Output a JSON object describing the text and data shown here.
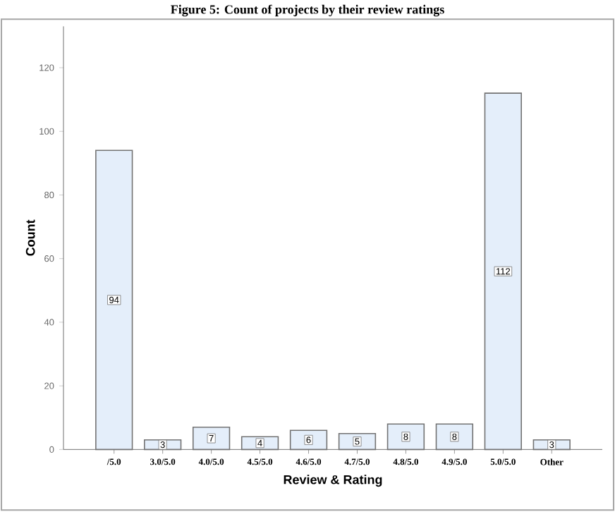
{
  "chart_data": {
    "type": "bar",
    "title": "Figure 5: Count of projects by their review ratings",
    "xlabel": "Review & Rating",
    "ylabel": "Count",
    "categories": [
      "/5.0",
      "3.0/5.0",
      "4.0/5.0",
      "4.5/5.0",
      "4.6/5.0",
      "4.7/5.0",
      "4.8/5.0",
      "4.9/5.0",
      "5.0/5.0",
      "Other"
    ],
    "values": [
      94,
      3,
      7,
      4,
      6,
      5,
      8,
      8,
      112,
      3
    ],
    "color": "#e4eefa",
    "ylim": [
      0,
      133
    ],
    "yticks": [
      0,
      20,
      40,
      60,
      80,
      100,
      120
    ],
    "data_labels": true
  }
}
